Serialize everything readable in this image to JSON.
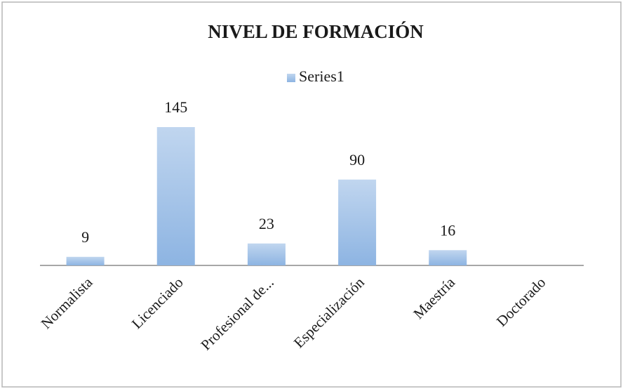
{
  "chart_data": {
    "type": "bar",
    "title": "NIVEL DE FORMACIÓN",
    "categories": [
      "Normalista",
      "Licenciado",
      "Profesional de...",
      "Especialización",
      "Maestría",
      "Doctorado"
    ],
    "series": [
      {
        "name": "Series1",
        "color": "#8db4e2",
        "values": [
          9,
          145,
          23,
          90,
          16,
          null
        ]
      }
    ]
  }
}
